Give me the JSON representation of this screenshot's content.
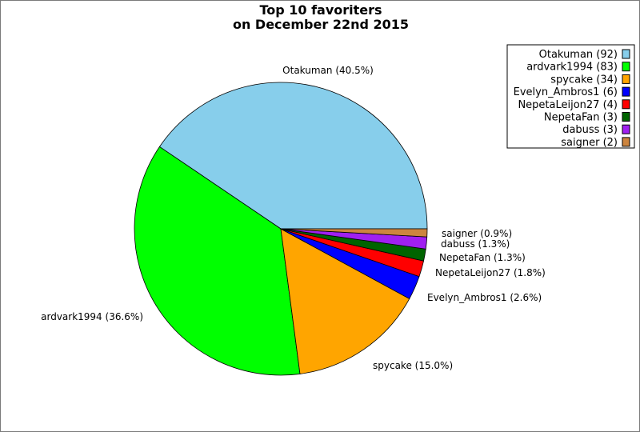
{
  "chart_data": {
    "type": "pie",
    "title": [
      "Top 10 favoriters",
      "on December 22nd 2015"
    ],
    "legend_position": "top-right",
    "slices": [
      {
        "name": "Otakuman",
        "value": 92,
        "percent": "40.5%",
        "color": "#87ceeb",
        "legend": "Otakuman (92)",
        "label": "Otakuman (40.5%)"
      },
      {
        "name": "ardvark1994",
        "value": 83,
        "percent": "36.6%",
        "color": "#00ff00",
        "legend": "ardvark1994 (83)",
        "label": "ardvark1994 (36.6%)"
      },
      {
        "name": "spycake",
        "value": 34,
        "percent": "15.0%",
        "color": "#ffa500",
        "legend": "spycake (34)",
        "label": "spycake (15.0%)"
      },
      {
        "name": "Evelyn_Ambros1",
        "value": 6,
        "percent": "2.6%",
        "color": "#0000ff",
        "legend": "Evelyn_Ambros1 (6)",
        "label": "Evelyn_Ambros1 (2.6%)"
      },
      {
        "name": "NepetaLeijon27",
        "value": 4,
        "percent": "1.8%",
        "color": "#ff0000",
        "legend": "NepetaLeijon27 (4)",
        "label": "NepetaLeijon27 (1.8%)"
      },
      {
        "name": "NepetaFan",
        "value": 3,
        "percent": "1.3%",
        "color": "#006400",
        "legend": "NepetaFan (3)",
        "label": "NepetaFan (1.3%)"
      },
      {
        "name": "dabuss",
        "value": 3,
        "percent": "1.3%",
        "color": "#a020f0",
        "legend": "dabuss (3)",
        "label": "dabuss (1.3%)"
      },
      {
        "name": "saigner",
        "value": 2,
        "percent": "0.9%",
        "color": "#cd853f",
        "legend": "saigner (2)",
        "label": "saigner (0.9%)"
      }
    ]
  }
}
